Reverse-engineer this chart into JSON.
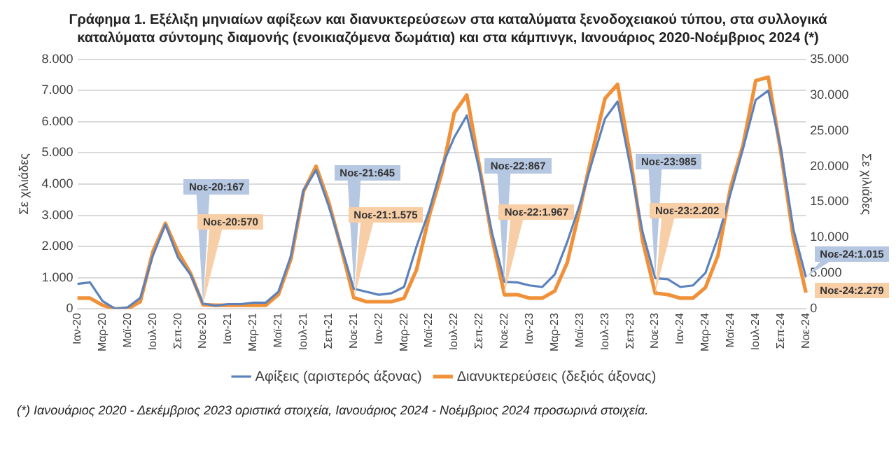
{
  "chart_data": {
    "type": "line",
    "title": "Γράφημα 1. Εξέλιξη μηνιαίων αφίξεων και διανυκτερεύσεων στα καταλύματα ξενοδοχειακού τύπου, στα συλλογικά καταλύματα σύντομης διαμονής (ενοικιαζόμενα δωμάτια) και στα κάμπινγκ, Ιανουάριος 2020-Νοέμβριος 2024 (*)",
    "ylabel": "Σε χιλιάδες",
    "y2label": "Σε χιλιάδες",
    "categories": [
      "Ιαν-20",
      null,
      "Μαρ-20",
      null,
      "Μαϊ-20",
      null,
      "Ιουλ-20",
      null,
      "Σεπ-20",
      null,
      "Νοε-20",
      null,
      "Ιαν-21",
      null,
      "Μαρ-21",
      null,
      "Μαϊ-21",
      null,
      "Ιουλ-21",
      null,
      "Σεπ-21",
      null,
      "Νοε-21",
      null,
      "Ιαν-22",
      null,
      "Μαρ-22",
      null,
      "Μαϊ-22",
      null,
      "Ιουλ-22",
      null,
      "Σεπ-22",
      null,
      "Νοε-22",
      null,
      "Ιαν-23",
      null,
      "Μαρ-23",
      null,
      "Μαϊ-23",
      null,
      "Ιουλ-23",
      null,
      "Σεπ-23",
      null,
      "Νοε-23",
      null,
      "Ιαν-24",
      null,
      "Μαρ-24",
      null,
      "Μαϊ-24",
      null,
      "Ιουλ-24",
      null,
      "Σεπ-24",
      null,
      "Νοε-24"
    ],
    "series": [
      {
        "name": "Αφίξεις (αριστερός άξονας)",
        "color": "#5b82bd",
        "values": [
          800,
          850,
          250,
          0,
          50,
          350,
          1700,
          2700,
          1650,
          1100,
          167,
          100,
          150,
          150,
          200,
          200,
          550,
          1700,
          3800,
          4450,
          3300,
          2000,
          645,
          550,
          450,
          500,
          700,
          2000,
          3150,
          4550,
          5500,
          6200,
          4450,
          2450,
          867,
          850,
          750,
          700,
          1100,
          2150,
          3350,
          4750,
          6100,
          6650,
          4600,
          2450,
          985,
          950,
          700,
          750,
          1150,
          2300,
          3700,
          5150,
          6700,
          7000,
          5150,
          2550,
          1015
        ]
      },
      {
        "name": "Διανυκτερεύσεις (δεξιός άξονας)",
        "color": "#f0913a",
        "axis": "y2",
        "values": [
          1500,
          1500,
          500,
          0,
          0,
          1000,
          8000,
          12000,
          8000,
          5000,
          570,
          500,
          500,
          500,
          500,
          500,
          2000,
          7000,
          16500,
          20000,
          15000,
          8500,
          1575,
          1000,
          1000,
          1000,
          1500,
          5500,
          13000,
          19000,
          27500,
          30000,
          20000,
          10000,
          1967,
          2000,
          1500,
          1500,
          2500,
          6500,
          14000,
          22000,
          29500,
          31500,
          21500,
          9500,
          2202,
          2000,
          1500,
          1500,
          3000,
          7500,
          17000,
          23000,
          32000,
          32500,
          22000,
          10000,
          2279
        ]
      }
    ],
    "ylim": [
      0,
      8000
    ],
    "yticks": [
      0,
      {
        "value": 1000,
        "label": "1.000"
      },
      {
        "value": 2000,
        "label": "2.000"
      },
      {
        "value": 3000,
        "label": "3.000"
      },
      {
        "value": 4000,
        "label": "4.000"
      },
      {
        "value": 5000,
        "label": "5.000"
      },
      {
        "value": 6000,
        "label": "6.000"
      },
      {
        "value": 7000,
        "label": "7.000"
      },
      {
        "value": 8000,
        "label": "8.000"
      }
    ],
    "y2lim": [
      0,
      35000
    ],
    "y2ticks": [
      0,
      {
        "value": 5000,
        "label": "5.000"
      },
      {
        "value": 10000,
        "label": "10.000"
      },
      {
        "value": 15000,
        "label": "15.000"
      },
      {
        "value": 20000,
        "label": "20.000"
      },
      {
        "value": 25000,
        "label": "25.000"
      },
      {
        "value": 30000,
        "label": "30.000"
      },
      {
        "value": 35000,
        "label": "35.000"
      }
    ],
    "grid": "y",
    "legend": "bottom",
    "annotations": [
      {
        "text": "Νοε-20:167",
        "x": "Νοε-20",
        "y": 167
      },
      "Νοε-20:570",
      {
        "text": "Νοε-21:645",
        "x": "Νοε-21",
        "y": 645
      },
      "Νοε-21:1.575",
      {
        "text": "Νοε-22:867",
        "x": "Νοε-22",
        "y": 867
      },
      "Νοε-22:1.967",
      {
        "text": "Νοε-23:985",
        "x": "Νοε-23",
        "y": 985
      },
      "Νοε-23:2.202",
      {
        "text": "Νοε-24:1.015",
        "x": "Νοε-24",
        "y": 1015
      },
      "Νοε-24:2.279",
      "(*) Ιανουάριος 2020 - Δεκέμβριος 2023 οριστικά στοιχεία, Ιανουάριος 2024 - Νοέμβριος 2024 προσωρινά στοιχεία."
    ]
  }
}
